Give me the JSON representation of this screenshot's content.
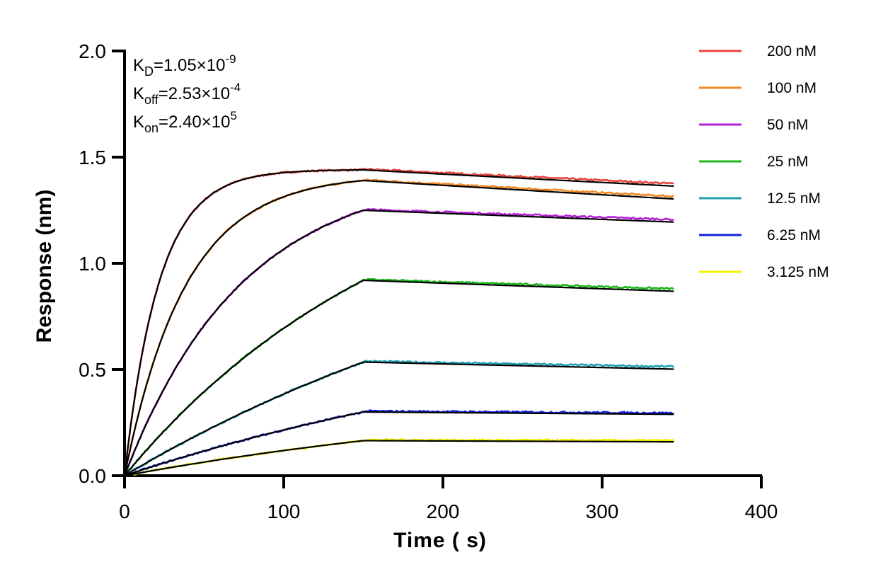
{
  "chart_data": {
    "type": "line",
    "xlabel": "Time ( s)",
    "ylabel": "Response (nm)",
    "xlim": [
      0,
      400
    ],
    "ylim": [
      0,
      2.0
    ],
    "x_ticks": [
      "0",
      "100",
      "200",
      "300",
      "400"
    ],
    "y_ticks": [
      "0.0",
      "0.5",
      "1.0",
      "1.5",
      "2.0"
    ],
    "grid": false,
    "legend_position": "right",
    "association_end_s": 150,
    "dissociation_end_s": 345,
    "fit_line_color": "#000000",
    "annotations": [
      {
        "base": "K",
        "sub": "D",
        "eq": "=1.05×10",
        "sup": "-9"
      },
      {
        "base": "K",
        "sub": "off",
        "eq": "=2.53×10",
        "sup": "-4"
      },
      {
        "base": "K",
        "sub": "on",
        "eq": "=2.40×10",
        "sup": "5"
      }
    ],
    "series": [
      {
        "name": "200 nM",
        "color": "#e8453c",
        "plateau": 1.44,
        "k_obs": 0.046,
        "decay": 0.00025
      },
      {
        "name": "100 nM",
        "color": "#f08a24",
        "plateau": 1.39,
        "k_obs": 0.026,
        "decay": 0.0003
      },
      {
        "name": "50 nM",
        "color": "#b620d6",
        "plateau": 1.25,
        "k_obs": 0.0135,
        "decay": 0.0002
      },
      {
        "name": "25 nM",
        "color": "#1db81d",
        "plateau": 0.92,
        "k_obs": 0.0056,
        "decay": 0.00025
      },
      {
        "name": "12.5 nM",
        "color": "#1fa0b4",
        "plateau": 0.535,
        "k_obs": 0.0032,
        "decay": 0.00025
      },
      {
        "name": "6.25 nM",
        "color": "#1020d8",
        "plateau": 0.3,
        "k_obs": 0.0032,
        "decay": 0.00015
      },
      {
        "name": "3.125 nM",
        "color": "#f5f000",
        "plateau": 0.165,
        "k_obs": 0.0032,
        "decay": 0.0001
      }
    ]
  }
}
